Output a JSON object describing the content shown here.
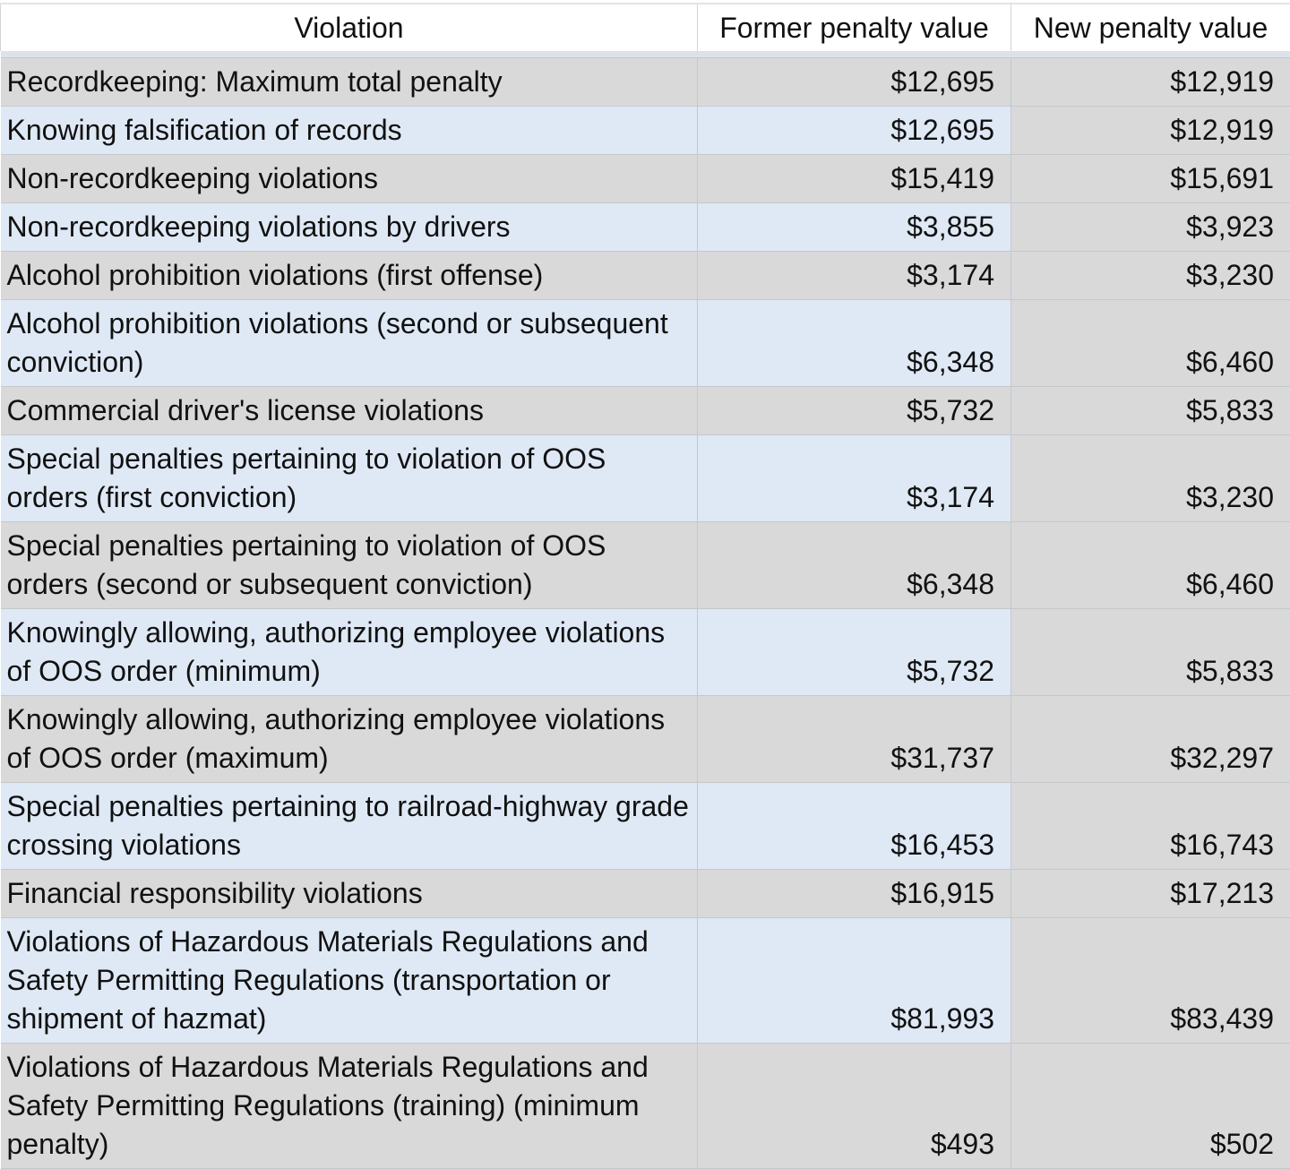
{
  "headers": {
    "violation": "Violation",
    "former": "Former penalty value",
    "new": "New penalty value"
  },
  "colors": {
    "header_bg": "#ffffff",
    "row_gray": "#d9d9d9",
    "row_blue": "#dfe9f5"
  },
  "rows": [
    {
      "violation": "Recordkeeping: Maximum total penalty",
      "former": "$12,695",
      "new": "$12,919"
    },
    {
      "violation": "Knowing falsification of records",
      "former": "$12,695",
      "new": "$12,919"
    },
    {
      "violation": "Non-recordkeeping violations",
      "former": "$15,419",
      "new": "$15,691"
    },
    {
      "violation": "Non-recordkeeping violations by drivers",
      "former": "$3,855",
      "new": "$3,923"
    },
    {
      "violation": "Alcohol prohibition violations (first offense)",
      "former": "$3,174",
      "new": "$3,230"
    },
    {
      "violation": "Alcohol prohibition violations (second or subsequent conviction)",
      "former": "$6,348",
      "new": "$6,460"
    },
    {
      "violation": "Commercial driver's license violations",
      "former": "$5,732",
      "new": "$5,833"
    },
    {
      "violation": "Special penalties pertaining to violation of OOS orders (first conviction)",
      "former": "$3,174",
      "new": "$3,230"
    },
    {
      "violation": "Special penalties pertaining to violation of OOS orders (second or subsequent conviction)",
      "former": "$6,348",
      "new": "$6,460"
    },
    {
      "violation": "Knowingly allowing, authorizing employee violations of OOS order (minimum)",
      "former": "$5,732",
      "new": "$5,833"
    },
    {
      "violation": "Knowingly allowing, authorizing employee violations of OOS order (maximum)",
      "former": "$31,737",
      "new": "$32,297"
    },
    {
      "violation": "Special penalties pertaining to railroad-highway grade crossing violations",
      "former": "$16,453",
      "new": "$16,743"
    },
    {
      "violation": "Financial responsibility violations",
      "former": "$16,915",
      "new": "$17,213"
    },
    {
      "violation": "Violations of Hazardous Materials Regulations and Safety Permitting Regulations (transportation or shipment of hazmat)",
      "former": "$81,993",
      "new": "$83,439"
    },
    {
      "violation": "Violations of Hazardous Materials Regulations and Safety Permitting Regulations (training) (minimum penalty)",
      "former": "$493",
      "new": "$502"
    }
  ]
}
